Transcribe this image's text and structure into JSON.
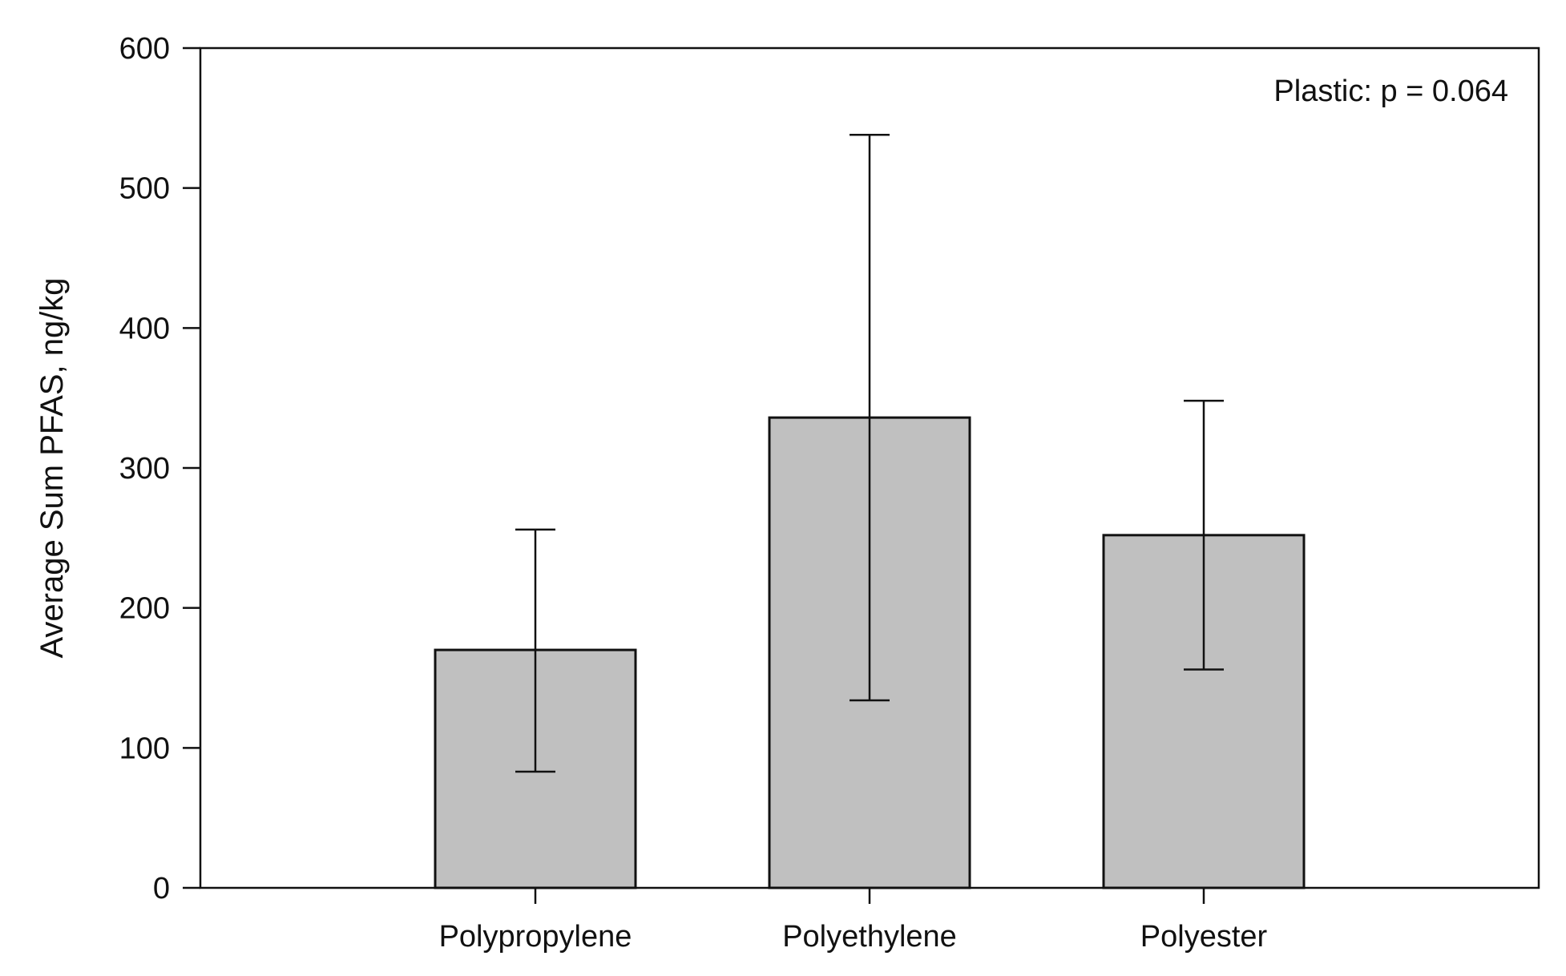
{
  "chart_data": {
    "type": "bar",
    "categories": [
      "Polypropylene",
      "Polyethylene",
      "Polyester"
    ],
    "values": [
      170,
      336,
      252
    ],
    "error_bars": {
      "upper": [
        256,
        538,
        348
      ],
      "lower": [
        83,
        134,
        156
      ]
    },
    "xlabel": "",
    "ylabel": "Average Sum PFAS, ng/kg",
    "ylim": [
      0,
      600
    ],
    "yticks": [
      0,
      100,
      200,
      300,
      400,
      500,
      600
    ],
    "annotation": "Plastic: p = 0.064",
    "grid": false,
    "legend": "none",
    "bar_color": "#c0c0c0",
    "edge_color": "#111111"
  }
}
